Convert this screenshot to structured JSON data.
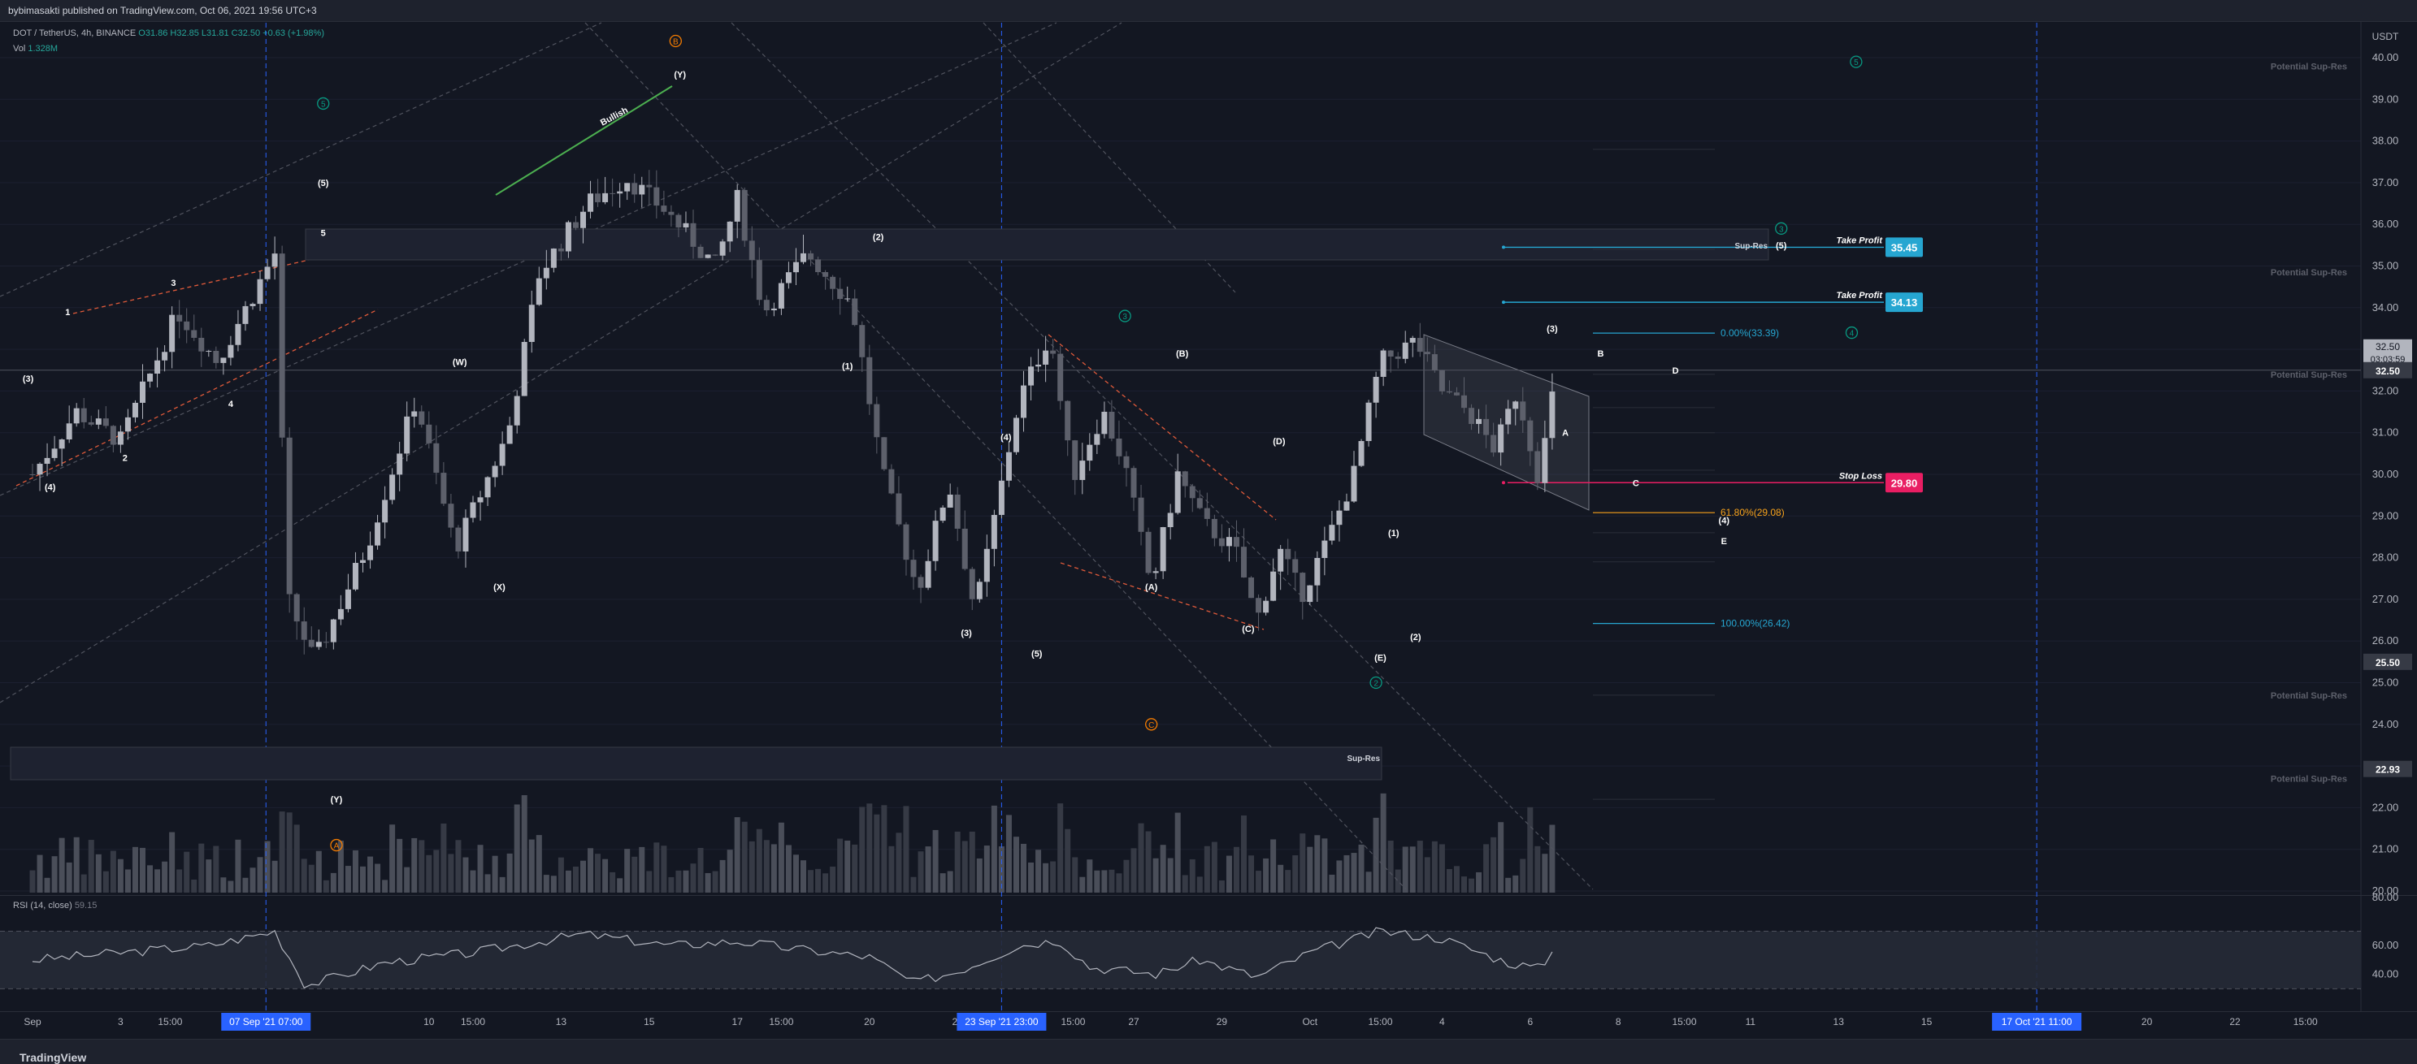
{
  "header": {
    "published_by": "bybimasakti published on TradingView.com, Oct 06, 2021 19:56 UTC+3"
  },
  "legend": {
    "symbol": "DOT / TetherUS, 4h, BINANCE",
    "ohlc": "O31.86 H32.85 L31.81 C32.50 +0.63 (+1.98%)",
    "vol_label": "Vol",
    "vol_value": "1.328M",
    "rsi_label": "RSI (14, close)",
    "rsi_value": "59.15"
  },
  "footer": {
    "brand": "TradingView"
  },
  "chart_data": {
    "type": "candlestick",
    "symbol": "DOT / TetherUS",
    "interval": "4h",
    "exchange": "BINANCE",
    "currency": "USDT",
    "ylim": [
      20,
      40.6
    ],
    "y_ticks": [
      "40.00",
      "39.00",
      "38.00",
      "37.00",
      "36.00",
      "35.00",
      "34.00",
      "33.00",
      "32.00",
      "31.00",
      "30.00",
      "29.00",
      "28.00",
      "27.00",
      "26.00",
      "25.00",
      "24.00",
      "23.00",
      "22.00",
      "21.00",
      "20.00"
    ],
    "price_badges": [
      {
        "label": "32.50",
        "value": 32.5,
        "sub": "03:03:59"
      },
      {
        "label": "32.50",
        "value": 32.5
      },
      {
        "label": "25.50",
        "value": 25.5
      },
      {
        "label": "22.93",
        "value": 22.93
      }
    ],
    "x_ticks": [
      {
        "label": "Sep",
        "day": 1
      },
      {
        "label": "3",
        "day": 3
      },
      {
        "label": "15:00",
        "day": 4.125
      },
      {
        "label": "6",
        "day": 6
      },
      {
        "label": "10",
        "day": 10
      },
      {
        "label": "15:00",
        "day": 11
      },
      {
        "label": "13",
        "day": 13
      },
      {
        "label": "15",
        "day": 15
      },
      {
        "label": "17",
        "day": 17
      },
      {
        "label": "15:00",
        "day": 18
      },
      {
        "label": "20",
        "day": 20
      },
      {
        "label": "22",
        "day": 22
      },
      {
        "label": "15:00",
        "day": 24.625
      },
      {
        "label": "27",
        "day": 26
      },
      {
        "label": "29",
        "day": 28
      },
      {
        "label": "Oct",
        "day": 30
      },
      {
        "label": "15:00",
        "day": 31.6
      },
      {
        "label": "4",
        "day": 33
      },
      {
        "label": "6",
        "day": 35
      },
      {
        "label": "8",
        "day": 37
      },
      {
        "label": "15:00",
        "day": 38.5
      },
      {
        "label": "11",
        "day": 40
      },
      {
        "label": "13",
        "day": 42
      },
      {
        "label": "15",
        "day": 44
      },
      {
        "label": "20",
        "day": 49
      },
      {
        "label": "22",
        "day": 51
      },
      {
        "label": "15:00",
        "day": 52.6
      }
    ],
    "x_badges": [
      {
        "label": "07 Sep '21  07:00",
        "day": 6.3
      },
      {
        "label": "23 Sep '21  23:00",
        "day": 23.0
      },
      {
        "label": "17 Oct '21  11:00",
        "day": 46.5
      }
    ],
    "key_points": [
      {
        "day": 1.0,
        "price": 30.0
      },
      {
        "day": 2.0,
        "price": 31.5
      },
      {
        "day": 3.0,
        "price": 30.8
      },
      {
        "day": 4.3,
        "price": 33.9
      },
      {
        "day": 5.2,
        "price": 32.7
      },
      {
        "day": 6.5,
        "price": 35.3
      },
      {
        "day": 6.8,
        "price": 27.0
      },
      {
        "day": 7.4,
        "price": 25.5
      },
      {
        "day": 8.6,
        "price": 28.3
      },
      {
        "day": 9.7,
        "price": 31.8
      },
      {
        "day": 10.6,
        "price": 28.2
      },
      {
        "day": 11.8,
        "price": 31.0
      },
      {
        "day": 12.5,
        "price": 34.8
      },
      {
        "day": 13.6,
        "price": 36.5
      },
      {
        "day": 14.5,
        "price": 37.1
      },
      {
        "day": 15.4,
        "price": 36.3
      },
      {
        "day": 16.5,
        "price": 35.0
      },
      {
        "day": 17.0,
        "price": 36.6
      },
      {
        "day": 17.6,
        "price": 33.9
      },
      {
        "day": 18.6,
        "price": 35.3
      },
      {
        "day": 19.6,
        "price": 34.1
      },
      {
        "day": 20.3,
        "price": 30.0
      },
      {
        "day": 21.1,
        "price": 27.2
      },
      {
        "day": 21.8,
        "price": 29.8
      },
      {
        "day": 22.4,
        "price": 26.7
      },
      {
        "day": 23.4,
        "price": 31.8
      },
      {
        "day": 24.1,
        "price": 33.4
      },
      {
        "day": 24.6,
        "price": 29.9
      },
      {
        "day": 25.3,
        "price": 31.5
      },
      {
        "day": 25.8,
        "price": 30.2
      },
      {
        "day": 26.4,
        "price": 27.3
      },
      {
        "day": 27.0,
        "price": 30.0
      },
      {
        "day": 27.6,
        "price": 28.8
      },
      {
        "day": 28.3,
        "price": 28.2
      },
      {
        "day": 28.8,
        "price": 26.5
      },
      {
        "day": 29.3,
        "price": 28.2
      },
      {
        "day": 29.8,
        "price": 27.1
      },
      {
        "day": 30.4,
        "price": 28.4
      },
      {
        "day": 31.0,
        "price": 30.0
      },
      {
        "day": 31.6,
        "price": 32.7
      },
      {
        "day": 32.4,
        "price": 33.2
      },
      {
        "day": 33.0,
        "price": 32.0
      },
      {
        "day": 33.6,
        "price": 31.5
      },
      {
        "day": 34.2,
        "price": 30.6
      },
      {
        "day": 34.7,
        "price": 32.0
      },
      {
        "day": 35.2,
        "price": 29.9
      },
      {
        "day": 35.6,
        "price": 32.5
      }
    ],
    "rsi": {
      "label": "RSI (14, close)",
      "value": 59.15,
      "y_ticks": [
        "80.00",
        "60.00",
        "40.00"
      ],
      "key_points": [
        {
          "day": 1,
          "v": 50
        },
        {
          "day": 3,
          "v": 55
        },
        {
          "day": 5,
          "v": 60
        },
        {
          "day": 6.5,
          "v": 70
        },
        {
          "day": 7.2,
          "v": 32
        },
        {
          "day": 9,
          "v": 48
        },
        {
          "day": 11,
          "v": 55
        },
        {
          "day": 13.5,
          "v": 68
        },
        {
          "day": 15.5,
          "v": 60
        },
        {
          "day": 17,
          "v": 63
        },
        {
          "day": 18.5,
          "v": 57
        },
        {
          "day": 20,
          "v": 52
        },
        {
          "day": 21,
          "v": 34
        },
        {
          "day": 22,
          "v": 42
        },
        {
          "day": 23.4,
          "v": 60
        },
        {
          "day": 24.3,
          "v": 64
        },
        {
          "day": 25,
          "v": 45
        },
        {
          "day": 26.5,
          "v": 40
        },
        {
          "day": 27.5,
          "v": 50
        },
        {
          "day": 28.8,
          "v": 38
        },
        {
          "day": 30,
          "v": 55
        },
        {
          "day": 31.6,
          "v": 70
        },
        {
          "day": 33,
          "v": 65
        },
        {
          "day": 34.5,
          "v": 48
        },
        {
          "day": 35.2,
          "v": 44
        },
        {
          "day": 35.6,
          "v": 59
        }
      ]
    },
    "fib_levels": [
      {
        "label": "0.00%(33.39)",
        "value": 33.39
      },
      {
        "label": "61.80%(29.08)",
        "value": 29.08
      },
      {
        "label": "100.00%(26.42)",
        "value": 26.42
      }
    ],
    "trade_levels": [
      {
        "label": "Take Profit",
        "value": 35.45,
        "badge": "35.45"
      },
      {
        "label": "Take Profit",
        "value": 34.13,
        "badge": "34.13"
      },
      {
        "label": "Stop Loss",
        "value": 29.8,
        "badge": "29.80"
      }
    ],
    "zone_labels": [
      {
        "text": "Potential Sup-Res",
        "value": 39.8
      },
      {
        "text": "Potential Sup-Res",
        "value": 34.85
      },
      {
        "text": "Potential Sup-Res",
        "value": 32.4
      },
      {
        "text": "Potential Sup-Res",
        "value": 24.7
      },
      {
        "text": "Potential Sup-Res",
        "value": 22.7
      },
      {
        "text": "Sup-Res",
        "value": 35.5
      },
      {
        "text": "Sup-Res",
        "value": 23.2
      }
    ],
    "annotations": [
      {
        "text": "Bullish",
        "day": 14.2,
        "price": 38.6,
        "color": "#ffffff"
      },
      {
        "text": "(Y)",
        "day": 15.7,
        "price": 39.6
      },
      {
        "text": "5",
        "day": 7.6,
        "price": 35.8
      },
      {
        "text": "(5)",
        "day": 7.6,
        "price": 37.0
      },
      {
        "text": "1",
        "day": 1.8,
        "price": 33.9
      },
      {
        "text": "3",
        "day": 4.2,
        "price": 34.6
      },
      {
        "text": "(3)",
        "day": 0.9,
        "price": 32.3
      },
      {
        "text": "4",
        "day": 5.5,
        "price": 31.7
      },
      {
        "text": "2",
        "day": 3.1,
        "price": 30.4
      },
      {
        "text": "(4)",
        "day": 1.4,
        "price": 29.7
      },
      {
        "text": "(W)",
        "day": 10.7,
        "price": 32.7
      },
      {
        "text": "(X)",
        "day": 11.6,
        "price": 27.3
      },
      {
        "text": "(2)",
        "day": 20.2,
        "price": 35.7
      },
      {
        "text": "(1)",
        "day": 19.5,
        "price": 32.6
      },
      {
        "text": "(4)",
        "day": 23.1,
        "price": 30.9
      },
      {
        "text": "(3)",
        "day": 22.2,
        "price": 26.2
      },
      {
        "text": "(5)",
        "day": 23.8,
        "price": 25.7
      },
      {
        "text": "(B)",
        "day": 27.1,
        "price": 32.9
      },
      {
        "text": "(D)",
        "day": 29.3,
        "price": 30.8
      },
      {
        "text": "(A)",
        "day": 26.4,
        "price": 27.3
      },
      {
        "text": "(C)",
        "day": 28.6,
        "price": 26.3
      },
      {
        "text": "(1)",
        "day": 31.9,
        "price": 28.6
      },
      {
        "text": "(2)",
        "day": 32.4,
        "price": 26.1
      },
      {
        "text": "(E)",
        "day": 31.6,
        "price": 25.6
      },
      {
        "text": "(3)",
        "day": 35.5,
        "price": 33.5
      },
      {
        "text": "A",
        "day": 35.8,
        "price": 31.0
      },
      {
        "text": "B",
        "day": 36.6,
        "price": 32.9
      },
      {
        "text": "D",
        "day": 38.3,
        "price": 32.5
      },
      {
        "text": "C",
        "day": 37.4,
        "price": 29.8
      },
      {
        "text": "(4)",
        "day": 39.4,
        "price": 28.9
      },
      {
        "text": "E",
        "day": 39.4,
        "price": 28.4
      },
      {
        "text": "(5)",
        "day": 40.7,
        "price": 35.5
      }
    ],
    "circle_labels": [
      {
        "text": "B",
        "day": 15.6,
        "price": 40.4,
        "color": "#f57c00"
      },
      {
        "text": "5",
        "day": 7.6,
        "price": 38.9,
        "color": "#089981"
      },
      {
        "text": "5",
        "day": 42.4,
        "price": 39.9,
        "color": "#089981"
      },
      {
        "text": "3",
        "day": 40.7,
        "price": 35.9,
        "color": "#089981"
      },
      {
        "text": "4",
        "day": 42.3,
        "price": 33.4,
        "color": "#089981"
      },
      {
        "text": "3",
        "day": 25.8,
        "price": 33.8,
        "color": "#089981"
      },
      {
        "text": "2",
        "day": 31.5,
        "price": 25.0,
        "color": "#089981"
      },
      {
        "text": "C",
        "day": 26.4,
        "price": 24.0,
        "color": "#f57c00"
      },
      {
        "text": "A",
        "day": 7.9,
        "price": 21.1,
        "color": "#f57c00"
      }
    ],
    "misc_labels": [
      {
        "text": "(Y)",
        "day": 7.9,
        "price": 22.2
      }
    ],
    "colors": {
      "bg": "#131722",
      "up": "#b2b5be",
      "down": "#5d606b",
      "accent": "#2962ff",
      "take_profit": "#26a6d1",
      "stop_loss": "#e91e63",
      "fib_618": "#f7a21b"
    }
  }
}
